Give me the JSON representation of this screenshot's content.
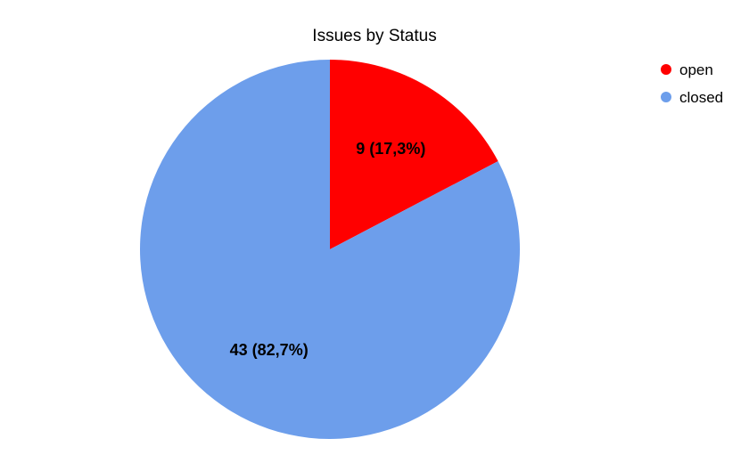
{
  "chart_data": {
    "type": "pie",
    "title": "Issues by Status",
    "categories": [
      "open",
      "closed"
    ],
    "values": [
      9,
      43
    ],
    "slice_labels": [
      "9 (17,3%)",
      "43 (82,7%)"
    ],
    "colors": [
      "#ff0000",
      "#6d9eeb"
    ],
    "start_angle_deg": 0,
    "direction": "clockwise",
    "legend_position": "top-right"
  }
}
